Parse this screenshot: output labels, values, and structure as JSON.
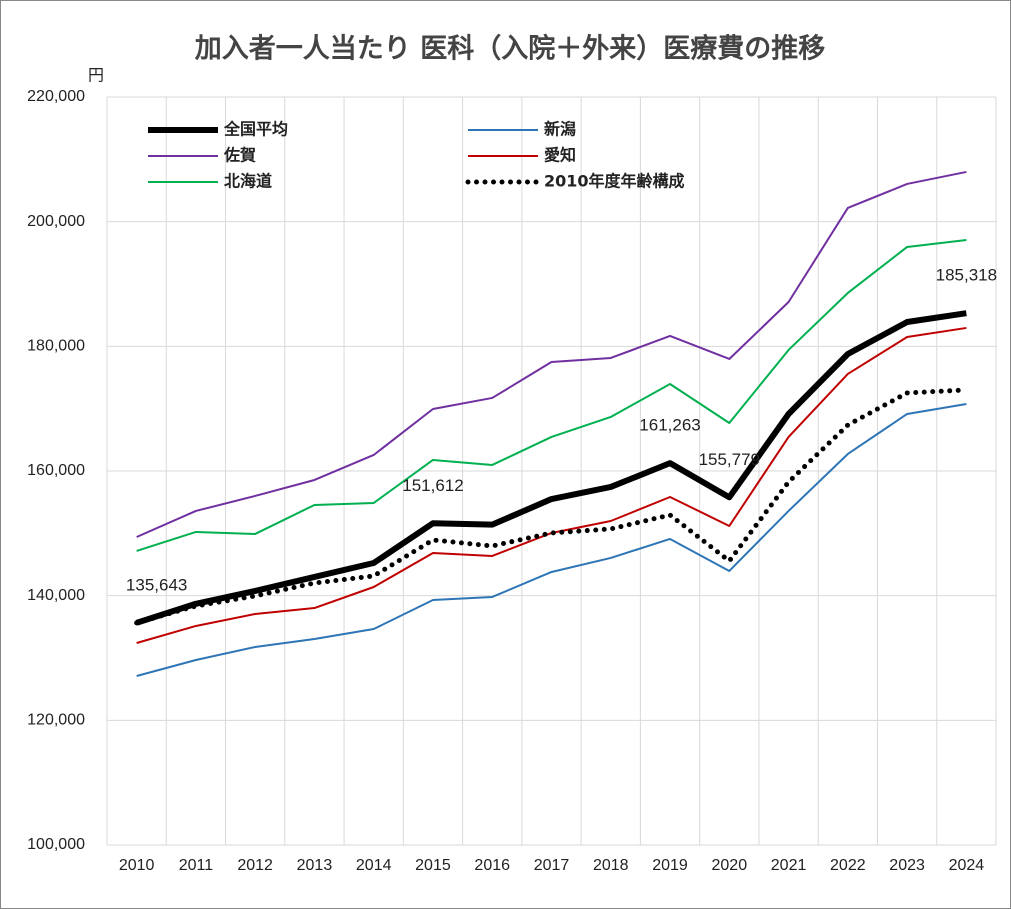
{
  "chart_data": {
    "type": "line",
    "title": "加入者一人当たり 医科（入院＋外来）医療費の推移",
    "y_unit": "円",
    "categories": [
      "2010",
      "2011",
      "2012",
      "2013",
      "2014",
      "2015",
      "2016",
      "2017",
      "2018",
      "2019",
      "2020",
      "2021",
      "2022",
      "2023",
      "2024"
    ],
    "series": [
      {
        "name": "全国平均",
        "color": "#000000",
        "bold": true,
        "values": [
          135643,
          138700,
          140750,
          143000,
          145240,
          151612,
          151400,
          155500,
          157440,
          161263,
          155779,
          169150,
          178770,
          183900,
          185318
        ],
        "value_labels": [
          "135,643",
          null,
          null,
          null,
          null,
          "151,612",
          null,
          null,
          null,
          "161,263",
          "155,779",
          null,
          null,
          null,
          "185,318"
        ]
      },
      {
        "name": "新潟",
        "color": "#2e75b6",
        "values": [
          127110,
          129680,
          131770,
          133050,
          134650,
          139300,
          139790,
          143800,
          146050,
          149100,
          143960,
          153590,
          162730,
          169150,
          170750
        ]
      },
      {
        "name": "佐賀",
        "color": "#7030a0",
        "values": [
          149410,
          153590,
          156000,
          158560,
          162570,
          169950,
          171720,
          177490,
          178130,
          181660,
          177970,
          187110,
          202200,
          206050,
          207980
        ]
      },
      {
        "name": "愛知",
        "color": "#c00000",
        "values": [
          132410,
          135140,
          137060,
          138020,
          141390,
          146850,
          146370,
          150060,
          151980,
          155830,
          151180,
          165460,
          175570,
          181500,
          182950
        ]
      },
      {
        "name": "北海道",
        "color": "#00b050",
        "values": [
          147170,
          150220,
          149900,
          154550,
          154870,
          161770,
          160970,
          165460,
          168670,
          173960,
          167700,
          179420,
          188560,
          195940,
          197060
        ]
      },
      {
        "name": "2010年度年齢構成",
        "color": "#000000",
        "style": "dotted",
        "values": [
          135640,
          138340,
          139950,
          142030,
          143160,
          148930,
          147970,
          150060,
          150700,
          152940,
          145560,
          158240,
          167380,
          172520,
          173000
        ]
      }
    ],
    "ylim": [
      100000,
      220000
    ],
    "yticks": [
      {
        "value": 100000,
        "label": "100,000"
      },
      {
        "value": 120000,
        "label": "120,000"
      },
      {
        "value": 140000,
        "label": "140,000"
      },
      {
        "value": 160000,
        "label": "160,000"
      },
      {
        "value": 180000,
        "label": "180,000"
      },
      {
        "value": 200000,
        "label": "200,000"
      },
      {
        "value": 220000,
        "label": "220,000"
      }
    ],
    "grid": true
  }
}
